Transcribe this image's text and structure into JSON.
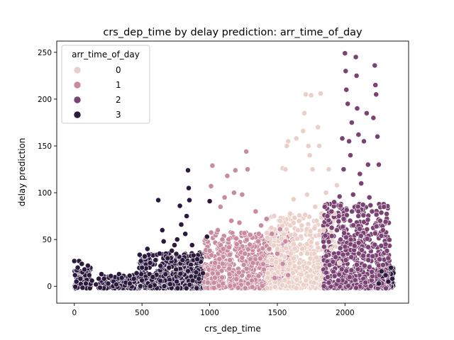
{
  "chart_data": {
    "type": "scatter",
    "title": "crs_dep_time by delay prediction: arr_time_of_day",
    "xlabel": "crs_dep_time",
    "ylabel": "delay prediction",
    "xlim": [
      -130,
      2470
    ],
    "ylim": [
      -18,
      262
    ],
    "xticks": [
      0,
      500,
      1000,
      1500,
      2000
    ],
    "yticks": [
      0,
      50,
      100,
      150,
      200,
      250
    ],
    "grid": false,
    "legend": {
      "title": "arr_time_of_day",
      "placement": "top-left",
      "entries": [
        "0",
        "1",
        "2",
        "3"
      ]
    },
    "colors": {
      "0": "#ebd0c9",
      "1": "#c98ba0",
      "2": "#7b4374",
      "3": "#2b1a3e"
    },
    "series": [
      {
        "name": "3",
        "points": [
          [
            0,
            27
          ],
          [
            5,
            12
          ],
          [
            15,
            5
          ],
          [
            25,
            20
          ],
          [
            35,
            27
          ],
          [
            45,
            8
          ],
          [
            55,
            24
          ],
          [
            60,
            15
          ],
          [
            75,
            18
          ],
          [
            85,
            3
          ],
          [
            100,
            22
          ],
          [
            110,
            12
          ],
          [
            130,
            6
          ],
          [
            160,
            2
          ],
          [
            200,
            13
          ],
          [
            220,
            8
          ],
          [
            250,
            3
          ],
          [
            270,
            11
          ],
          [
            290,
            5
          ],
          [
            310,
            2
          ],
          [
            330,
            13
          ],
          [
            350,
            9
          ],
          [
            380,
            4
          ],
          [
            410,
            3
          ],
          [
            440,
            8
          ],
          [
            460,
            14
          ],
          [
            500,
            20
          ],
          [
            520,
            32
          ],
          [
            540,
            40
          ],
          [
            560,
            25
          ],
          [
            580,
            10
          ],
          [
            600,
            28
          ],
          [
            620,
            92
          ],
          [
            630,
            35
          ],
          [
            650,
            60
          ],
          [
            660,
            48
          ],
          [
            690,
            30
          ],
          [
            700,
            20
          ],
          [
            720,
            38
          ],
          [
            740,
            44
          ],
          [
            760,
            50
          ],
          [
            780,
            86
          ],
          [
            790,
            66
          ],
          [
            800,
            28
          ],
          [
            820,
            56
          ],
          [
            830,
            75
          ],
          [
            840,
            124
          ],
          [
            845,
            105
          ],
          [
            850,
            92
          ],
          [
            870,
            44
          ],
          [
            880,
            33
          ],
          [
            900,
            15
          ],
          [
            920,
            8
          ],
          [
            950,
            14
          ],
          [
            980,
            53
          ],
          [
            1000,
            91
          ],
          [
            2300,
            12
          ],
          [
            2320,
            5
          ],
          [
            2340,
            20
          ],
          [
            2350,
            8
          ],
          [
            2270,
            16
          ],
          [
            2250,
            3
          ]
        ]
      },
      {
        "name": "1",
        "points": [
          [
            1000,
            38
          ],
          [
            1010,
            107
          ],
          [
            1020,
            129
          ],
          [
            1040,
            25
          ],
          [
            1060,
            60
          ],
          [
            1080,
            85
          ],
          [
            1100,
            40
          ],
          [
            1110,
            95
          ],
          [
            1130,
            118
          ],
          [
            1140,
            50
          ],
          [
            1150,
            28
          ],
          [
            1160,
            70
          ],
          [
            1180,
            100
          ],
          [
            1190,
            124
          ],
          [
            1200,
            45
          ],
          [
            1220,
            68
          ],
          [
            1240,
            98
          ],
          [
            1260,
            35
          ],
          [
            1270,
            144
          ],
          [
            1280,
            125
          ],
          [
            1300,
            55
          ],
          [
            1320,
            25
          ],
          [
            1340,
            80
          ],
          [
            1360,
            48
          ],
          [
            1380,
            65
          ],
          [
            1400,
            18
          ],
          [
            1420,
            72
          ],
          [
            1440,
            40
          ],
          [
            1460,
            56
          ],
          [
            1480,
            9
          ],
          [
            1500,
            35
          ],
          [
            1520,
            61
          ],
          [
            1540,
            24
          ],
          [
            1560,
            48
          ],
          [
            1580,
            12
          ]
        ]
      },
      {
        "name": "0",
        "points": [
          [
            1500,
            40
          ],
          [
            1520,
            70
          ],
          [
            1540,
            126
          ],
          [
            1560,
            125
          ],
          [
            1570,
            150
          ],
          [
            1580,
            155
          ],
          [
            1600,
            35
          ],
          [
            1620,
            93
          ],
          [
            1640,
            158
          ],
          [
            1660,
            20
          ],
          [
            1680,
            65
          ],
          [
            1690,
            166
          ],
          [
            1700,
            185
          ],
          [
            1710,
            205
          ],
          [
            1720,
            98
          ],
          [
            1730,
            150
          ],
          [
            1740,
            140
          ],
          [
            1750,
            204
          ],
          [
            1760,
            125
          ],
          [
            1780,
            85
          ],
          [
            1790,
            70
          ],
          [
            1800,
            170
          ],
          [
            1810,
            150
          ],
          [
            1820,
            206
          ],
          [
            1840,
            60
          ],
          [
            1860,
            100
          ],
          [
            1880,
            125
          ],
          [
            1900,
            40
          ],
          [
            1920,
            78
          ],
          [
            1940,
            108
          ],
          [
            1960,
            25
          ]
        ]
      },
      {
        "name": "2",
        "points": [
          [
            1850,
            85
          ],
          [
            1870,
            75
          ],
          [
            1900,
            80
          ],
          [
            1920,
            90
          ],
          [
            1940,
            60
          ],
          [
            1960,
            96
          ],
          [
            1980,
            158
          ],
          [
            1990,
            125
          ],
          [
            2000,
            249
          ],
          [
            2005,
            230
          ],
          [
            2010,
            210
          ],
          [
            2020,
            195
          ],
          [
            2030,
            155
          ],
          [
            2040,
            140
          ],
          [
            2050,
            175
          ],
          [
            2060,
            98
          ],
          [
            2080,
            245
          ],
          [
            2085,
            225
          ],
          [
            2090,
            190
          ],
          [
            2100,
            162
          ],
          [
            2110,
            120
          ],
          [
            2120,
            110
          ],
          [
            2140,
            155
          ],
          [
            2160,
            185
          ],
          [
            2170,
            130
          ],
          [
            2180,
            95
          ],
          [
            2200,
            80
          ],
          [
            2210,
            180
          ],
          [
            2220,
            236
          ],
          [
            2225,
            215
          ],
          [
            2230,
            205
          ],
          [
            2240,
            160
          ],
          [
            2250,
            130
          ],
          [
            2260,
            70
          ],
          [
            2280,
            60
          ],
          [
            2300,
            45
          ],
          [
            2310,
            38
          ],
          [
            2320,
            30
          ]
        ]
      }
    ]
  }
}
